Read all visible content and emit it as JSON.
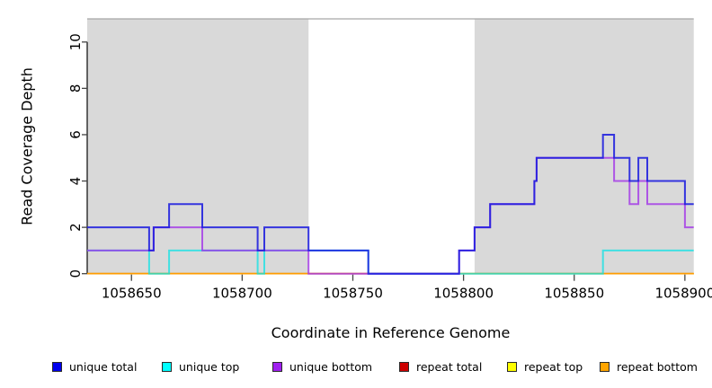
{
  "chart_data": {
    "type": "line",
    "subtype": "step",
    "title": "",
    "xlabel": "Coordinate in Reference Genome",
    "ylabel": "Read Coverage Depth",
    "xlim": [
      1058630,
      1058904
    ],
    "ylim": [
      0,
      11
    ],
    "xticks": [
      1058650,
      1058700,
      1058750,
      1058800,
      1058850,
      1058900
    ],
    "yticks": [
      0,
      2,
      4,
      6,
      8,
      10
    ],
    "grid": false,
    "legend_position": "bottom",
    "shaded_regions": {
      "color": "#d9d9d9",
      "border_color": "#a6a6a6",
      "ranges": [
        [
          1058630,
          1058730
        ],
        [
          1058805,
          1058904
        ]
      ]
    },
    "series": [
      {
        "name": "repeat total",
        "color": "#cd0000",
        "steps": [
          [
            1058630,
            0
          ]
        ]
      },
      {
        "name": "repeat top",
        "color": "#ffff00",
        "steps": [
          [
            1058630,
            0
          ]
        ]
      },
      {
        "name": "repeat bottom",
        "color": "#ff9d00",
        "steps": [
          [
            1058630,
            0
          ]
        ]
      },
      {
        "name": "unique top",
        "color": "#00e2e6",
        "steps": [
          [
            1058630,
            1
          ],
          [
            1058658,
            0
          ],
          [
            1058667,
            1
          ],
          [
            1058707,
            0
          ],
          [
            1058710,
            1
          ],
          [
            1058757,
            0
          ],
          [
            1058863,
            1
          ]
        ]
      },
      {
        "name": "unique bottom",
        "color": "#a030e8",
        "steps": [
          [
            1058630,
            1
          ],
          [
            1058660,
            2
          ],
          [
            1058682,
            1
          ],
          [
            1058730,
            0
          ],
          [
            1058798,
            1
          ],
          [
            1058805,
            2
          ],
          [
            1058812,
            3
          ],
          [
            1058832,
            4
          ],
          [
            1058833,
            5
          ],
          [
            1058868,
            4
          ],
          [
            1058875,
            3
          ],
          [
            1058879,
            4
          ],
          [
            1058883,
            3
          ],
          [
            1058900,
            2
          ]
        ]
      },
      {
        "name": "unique total",
        "color": "#1c1cde",
        "steps": [
          [
            1058630,
            2
          ],
          [
            1058658,
            1
          ],
          [
            1058660,
            2
          ],
          [
            1058667,
            3
          ],
          [
            1058682,
            2
          ],
          [
            1058707,
            1
          ],
          [
            1058710,
            2
          ],
          [
            1058730,
            1
          ],
          [
            1058757,
            0
          ],
          [
            1058798,
            1
          ],
          [
            1058805,
            2
          ],
          [
            1058812,
            3
          ],
          [
            1058832,
            4
          ],
          [
            1058833,
            5
          ],
          [
            1058863,
            6
          ],
          [
            1058868,
            5
          ],
          [
            1058875,
            4
          ],
          [
            1058879,
            5
          ],
          [
            1058883,
            4
          ],
          [
            1058900,
            3
          ]
        ]
      }
    ],
    "legend": [
      {
        "label": "unique total",
        "color": "#0000ee"
      },
      {
        "label": "unique top",
        "color": "#00ffff"
      },
      {
        "label": "unique bottom",
        "color": "#a020f0"
      },
      {
        "label": "repeat total",
        "color": "#cd0000"
      },
      {
        "label": "repeat top",
        "color": "#ffff00"
      },
      {
        "label": "repeat bottom",
        "color": "#ffa500"
      }
    ]
  }
}
